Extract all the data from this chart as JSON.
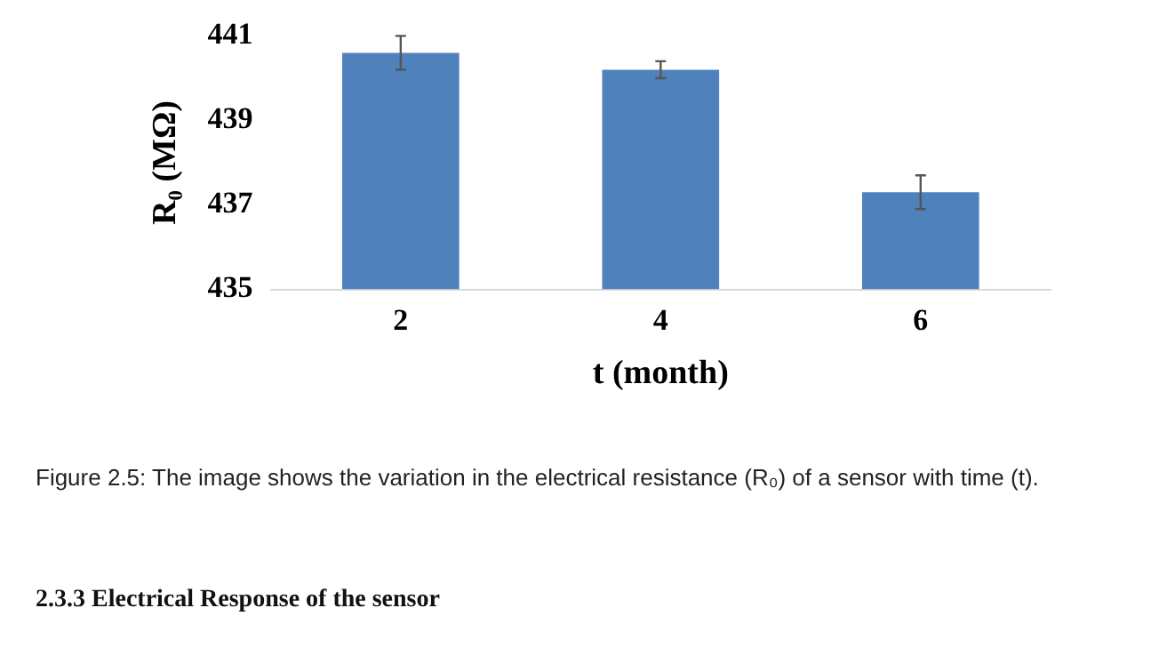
{
  "chart_data": {
    "type": "bar",
    "xlabel": "t (month)",
    "ylabel": "R₀ (MΩ)",
    "categories": [
      "2",
      "4",
      "6"
    ],
    "values": [
      440.6,
      440.2,
      437.3
    ],
    "errors": [
      0.4,
      0.2,
      0.4
    ],
    "color": "#4f81bd",
    "ylim": [
      435,
      441
    ],
    "yticks": [
      435,
      437,
      439,
      441
    ],
    "grid": false,
    "annotations": [
      "Figure 2.5: The image shows the variation in the electrical resistance (R₀) of a sensor with time (t).",
      "2.3.3 Electrical Response of the sensor"
    ]
  }
}
